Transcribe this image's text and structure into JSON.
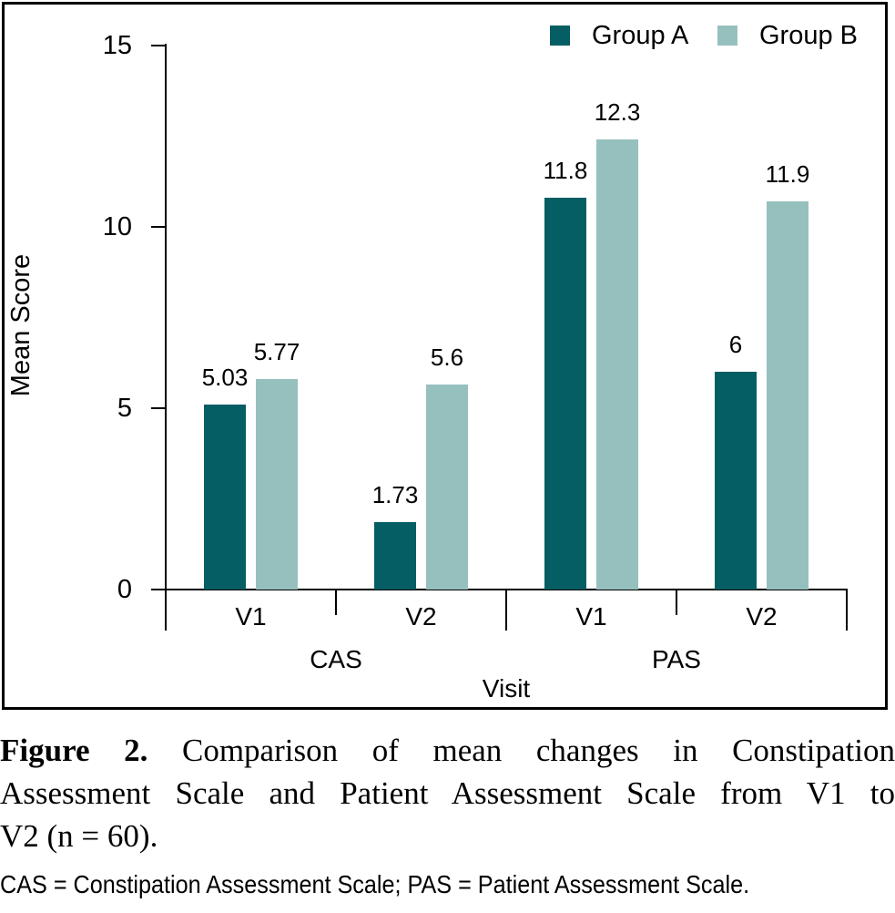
{
  "figure": {
    "caption": {
      "bold": "Figure 2.",
      "line1_rest": " Comparison of mean changes in Constipation",
      "line2": "Assessment Scale and Patient Assessment Scale from V1 to",
      "line3": "V2 (n = 60)."
    },
    "footnote": "CAS = Constipation Assessment Scale; PAS = Patient Assessment Scale."
  },
  "chart_data": {
    "type": "bar",
    "title": "",
    "xlabel": "Visit",
    "ylabel": "Mean Score",
    "ylim": [
      0,
      15
    ],
    "yticks": [
      "0",
      "5",
      "10",
      "15"
    ],
    "grid": false,
    "legend_position": "top-right-inside",
    "groups": [
      {
        "label": "CAS",
        "visits": [
          "V1",
          "V2"
        ]
      },
      {
        "label": "PAS",
        "visits": [
          "V1",
          "V2"
        ]
      }
    ],
    "categories": [
      "CAS V1",
      "CAS V2",
      "PAS V1",
      "PAS V2"
    ],
    "x_tick_labels": [
      "V1",
      "V2",
      "V1",
      "V2"
    ],
    "series": [
      {
        "name": "Group A",
        "color": "#045e63",
        "values": [
          5.03,
          1.73,
          11.8,
          6
        ]
      },
      {
        "name": "Group B",
        "color": "#96c0be",
        "values": [
          5.77,
          5.6,
          12.3,
          11.9
        ]
      }
    ],
    "drawn_bar_heights_units": [
      [
        5.1,
        1.85,
        10.8,
        6.0
      ],
      [
        5.8,
        5.65,
        12.4,
        10.7
      ]
    ]
  }
}
